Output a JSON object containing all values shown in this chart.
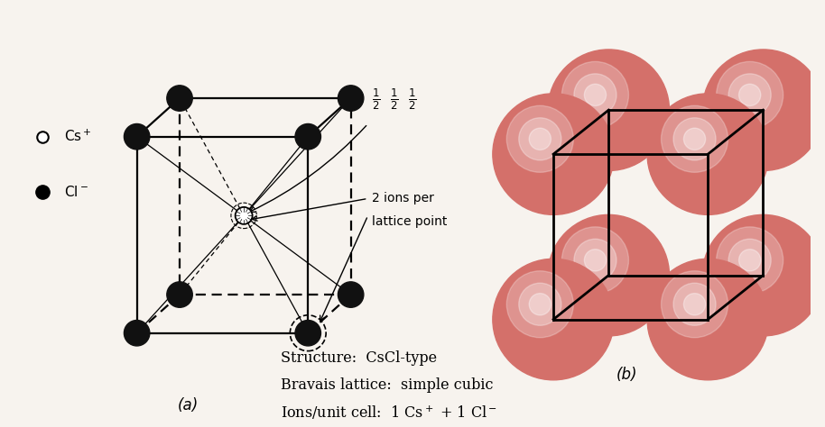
{
  "bg_color": "#f7f3ee",
  "cl_color": "#111111",
  "cs_color": "#ffffff",
  "sphere_color": "#d4706a",
  "sphere_highlight": "#f0b0aa",
  "label_a": "(a)",
  "label_b": "(b)",
  "struct_line1": "Structure:  CsCl-type",
  "struct_line2": "Bravais lattice:  simple cubic",
  "struct_line3_pre": "Ions/unit cell:  1 Cs",
  "struct_line3_post": " + 1 Cl"
}
